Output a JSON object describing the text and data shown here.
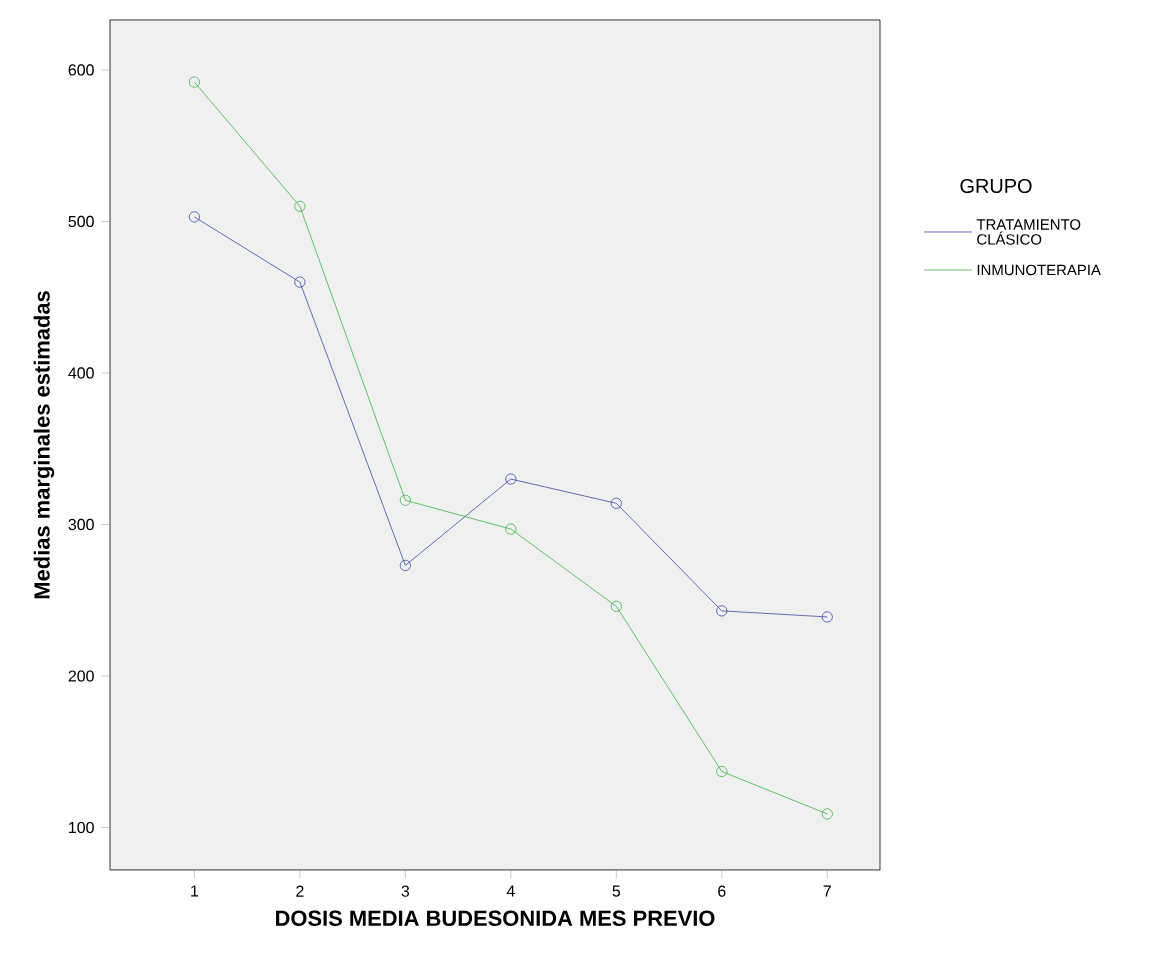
{
  "chart_data": {
    "type": "line",
    "xlabel": "DOSIS MEDIA BUDESONIDA MES PREVIO",
    "ylabel": "Medias marginales estimadas",
    "legend_title": "GRUPO",
    "legend": "right",
    "marker": "circle",
    "grid": false,
    "x": [
      1,
      2,
      3,
      4,
      5,
      6,
      7
    ],
    "xlim": [
      0.2,
      7.5
    ],
    "xticks": [
      1,
      2,
      3,
      4,
      5,
      6,
      7
    ],
    "ylim": [
      72,
      633
    ],
    "yticks": [
      100,
      200,
      300,
      400,
      500,
      600
    ],
    "series": [
      {
        "name": "TRATAMIENTO CLÁSICO",
        "color": "#3a4ba8",
        "values": [
          503,
          460,
          273,
          330,
          314,
          243,
          239
        ]
      },
      {
        "name": "INMUNOTERAPIA",
        "color": "#3cb44b",
        "values": [
          592,
          510,
          316,
          297,
          246,
          137,
          109
        ]
      }
    ]
  }
}
